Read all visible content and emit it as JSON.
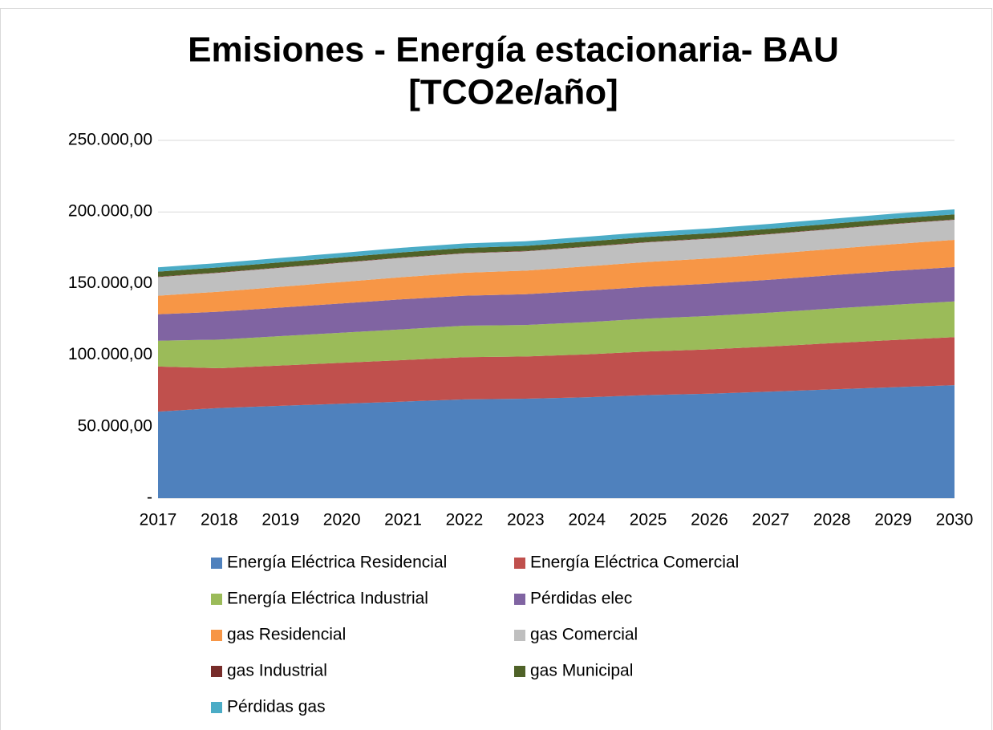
{
  "chart_data": {
    "type": "stacked_area",
    "title": [
      "Emisiones - Energía estacionaria- BAU",
      "[TCO2e/año]"
    ],
    "categories": [
      "2017",
      "2018",
      "2019",
      "2020",
      "2021",
      "2022",
      "2023",
      "2024",
      "2025",
      "2026",
      "2027",
      "2028",
      "2029",
      "2030"
    ],
    "series": [
      {
        "name": "Energía Eléctrica Residencial",
        "color": "#4f81bd",
        "values": [
          60500,
          63000,
          64500,
          66000,
          67500,
          69000,
          69500,
          70500,
          72000,
          73000,
          74500,
          76000,
          77500,
          79000
        ]
      },
      {
        "name": "Energía Eléctrica Comercial",
        "color": "#c0504d",
        "values": [
          31500,
          27800,
          28200,
          28600,
          29000,
          29500,
          29500,
          30000,
          30500,
          31000,
          31500,
          32300,
          33000,
          33500
        ]
      },
      {
        "name": "Energía Eléctrica Industrial",
        "color": "#9bbb59",
        "values": [
          18000,
          20000,
          20500,
          21000,
          21500,
          22000,
          22000,
          22500,
          23000,
          23300,
          23700,
          24200,
          24600,
          25000
        ]
      },
      {
        "name": "Pérdidas elec",
        "color": "#8064a2",
        "values": [
          18500,
          19500,
          20000,
          20500,
          21000,
          21000,
          21500,
          22000,
          22300,
          22600,
          23000,
          23300,
          23700,
          24000
        ]
      },
      {
        "name": "gas Residencial",
        "color": "#f79646",
        "values": [
          13000,
          14000,
          14500,
          15000,
          15500,
          16000,
          16500,
          17000,
          17300,
          17600,
          18000,
          18300,
          18700,
          19000
        ]
      },
      {
        "name": "gas Comercial",
        "color": "#bfbfbf",
        "values": [
          13000,
          13200,
          13300,
          13400,
          13500,
          13500,
          13500,
          13600,
          13700,
          13800,
          13800,
          13900,
          14000,
          14000
        ]
      },
      {
        "name": "gas Industrial",
        "color": "#772c2a",
        "values": [
          300,
          300,
          300,
          300,
          300,
          300,
          300,
          300,
          300,
          300,
          300,
          300,
          300,
          300
        ]
      },
      {
        "name": "gas Municipal",
        "color": "#4f6228",
        "values": [
          3500,
          3500,
          3500,
          3500,
          3500,
          3500,
          3500,
          3500,
          3500,
          3500,
          3500,
          3500,
          3500,
          3500
        ]
      },
      {
        "name": "Pérdidas gas",
        "color": "#4bacc6",
        "values": [
          3000,
          3000,
          3100,
          3100,
          3200,
          3200,
          3200,
          3300,
          3300,
          3400,
          3400,
          3400,
          3500,
          3500
        ]
      }
    ],
    "ylim": [
      0,
      250000
    ],
    "yticks": [
      {
        "value": 0,
        "label": "-"
      },
      {
        "value": 50000,
        "label": "50.000,00"
      },
      {
        "value": 100000,
        "label": "100.000,00"
      },
      {
        "value": 150000,
        "label": "150.000,00"
      },
      {
        "value": 200000,
        "label": "200.000,00"
      },
      {
        "value": 250000,
        "label": "250.000,00"
      }
    ],
    "grid": true,
    "legend": "bottom"
  }
}
